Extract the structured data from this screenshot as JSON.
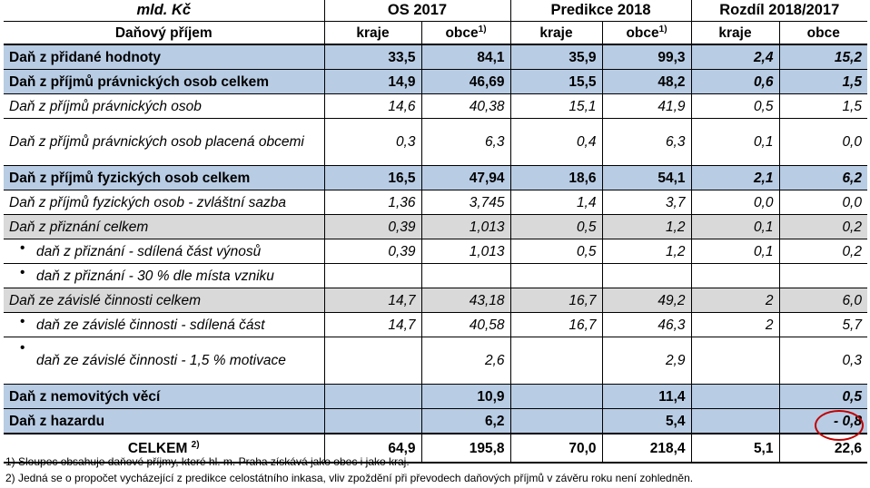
{
  "header": {
    "unit": "mld. Kč",
    "groups": [
      "OS 2017",
      "Predikce 2018",
      "Rozdíl 2018/2017"
    ],
    "first_col": "Daňový příjem",
    "sub_kraje": "kraje",
    "sub_obce": "obce",
    "sup_mark": "1)"
  },
  "rows": [
    {
      "label": "Daň z přidané hodnoty",
      "v": [
        "33,5",
        "84,1",
        "35,9",
        "99,3",
        "2,4",
        "15,2"
      ]
    },
    {
      "label": "Daň z příjmů právnických osob celkem",
      "v": [
        "14,9",
        "46,69",
        "15,5",
        "48,2",
        "0,6",
        "1,5"
      ]
    },
    {
      "label": "Daň z příjmů právnických osob",
      "v": [
        "14,6",
        "40,38",
        "15,1",
        "41,9",
        "0,5",
        "1,5"
      ]
    },
    {
      "label": "Daň z příjmů právnických osob placená obcemi",
      "v": [
        "0,3",
        "6,3",
        "0,4",
        "6,3",
        "0,1",
        "0,0"
      ]
    },
    {
      "label": "Daň z příjmů fyzických osob celkem",
      "v": [
        "16,5",
        "47,94",
        "18,6",
        "54,1",
        "2,1",
        "6,2"
      ]
    },
    {
      "label": "Daň z příjmů fyzických osob - zvláštní sazba",
      "v": [
        "1,36",
        "3,745",
        "1,4",
        "3,7",
        "0,0",
        "0,0"
      ]
    },
    {
      "label": "Daň z přiznání celkem",
      "v": [
        "0,39",
        "1,013",
        "0,5",
        "1,2",
        "0,1",
        "0,2"
      ]
    },
    {
      "label": "daň z přiznání - sdílená část výnosů",
      "v": [
        "0,39",
        "1,013",
        "0,5",
        "1,2",
        "0,1",
        "0,2"
      ]
    },
    {
      "label": "daň z přiznání - 30 % dle místa vzniku",
      "v": [
        "",
        "",
        "",
        "",
        "",
        ""
      ]
    },
    {
      "label": "Daň ze závislé činnosti celkem",
      "v": [
        "14,7",
        "43,18",
        "16,7",
        "49,2",
        "2",
        "6,0"
      ]
    },
    {
      "label": "daň ze závislé činnosti - sdílená část",
      "v": [
        "14,7",
        "40,58",
        "16,7",
        "46,3",
        "2",
        "5,7"
      ]
    },
    {
      "label": "daň ze závislé činnosti - 1,5 % motivace",
      "v": [
        "",
        "2,6",
        "",
        "2,9",
        "",
        "0,3"
      ]
    },
    {
      "label": "Daň z nemovitých věcí",
      "v": [
        "",
        "10,9",
        "",
        "11,4",
        "",
        "0,5"
      ]
    },
    {
      "label": "Daň z hazardu",
      "v": [
        "",
        "6,2",
        "",
        "5,4",
        "",
        "- 0,8"
      ]
    }
  ],
  "total": {
    "label": "CELKEM",
    "sup": "2)",
    "v": [
      "64,9",
      "195,8",
      "70,0",
      "218,4",
      "5,1",
      "22,6"
    ]
  },
  "footnotes": [
    "1) Sloupec obsahuje daňové příjmy, které hl. m. Praha získává jako obec i jako kraj.",
    "2) Jedná se o propočet vycházející z predikce celostátního inkasa, vliv zpoždění při převodech daňových příjmů v závěru roku není zohledněn."
  ]
}
